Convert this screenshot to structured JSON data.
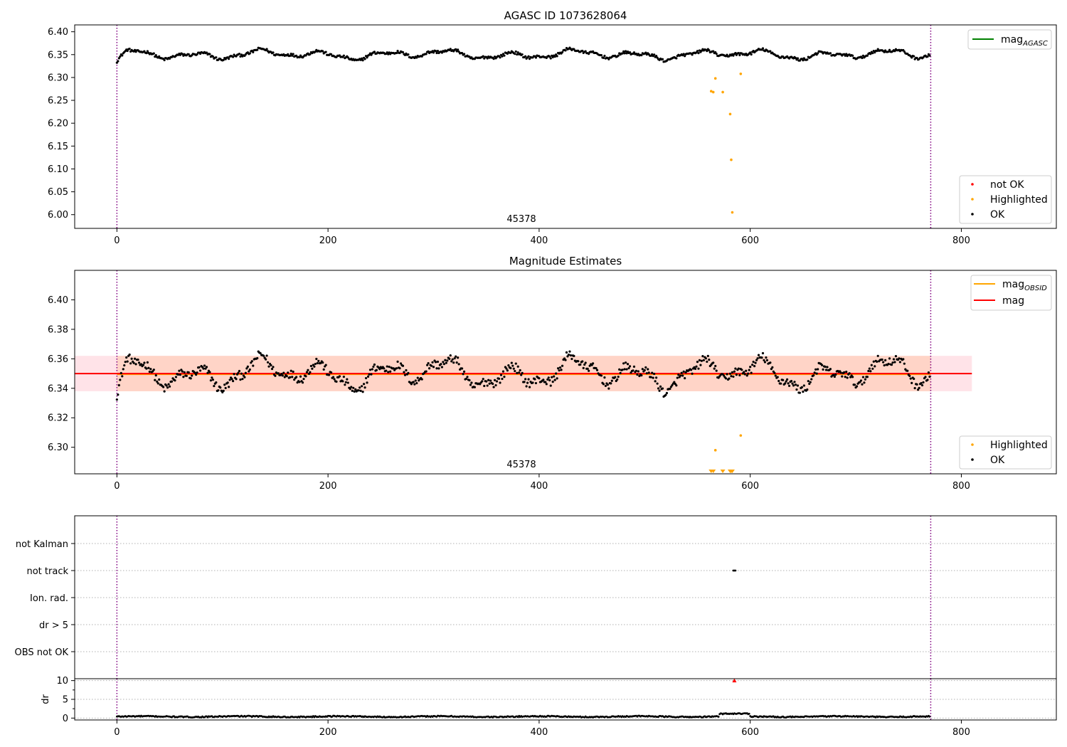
{
  "figure": {
    "title": "AGASC ID 1073628064",
    "colors": {
      "ok": "#000000",
      "highlighted": "#ffa500",
      "not_ok": "#ff0000",
      "mag_agasc": "#008000",
      "mag_obsid": "#ffa500",
      "mag": "#ff0000",
      "obsid_band": "#ffc0a0",
      "mag_band": "#ffc0cb",
      "obsid_boundary": "#800080",
      "grid": "#b0b0b0"
    }
  },
  "chart_data": [
    {
      "type": "scatter",
      "title": "AGASC ID 1073628064",
      "xlim": [
        -40,
        890
      ],
      "ylim": [
        5.97,
        6.415
      ],
      "xticks": [
        0,
        200,
        400,
        600,
        800
      ],
      "yticks": [
        "6.00",
        "6.05",
        "6.10",
        "6.15",
        "6.20",
        "6.25",
        "6.30",
        "6.35",
        "6.40"
      ],
      "obsid_label": "45378",
      "obsid_boundaries": [
        0,
        771
      ],
      "legend_lines": [
        {
          "label": "mag",
          "subscript": "AGASC"
        }
      ],
      "legend_points": [
        "not OK",
        "Highlighted",
        "OK"
      ],
      "series": [
        {
          "name": "OK",
          "generator": "baseline",
          "n": 771,
          "mean": 6.35,
          "amplitude": 0.012,
          "noise": 0.003
        },
        {
          "name": "Highlighted",
          "x": [
            563,
            565,
            567,
            574,
            581,
            582,
            583,
            591
          ],
          "y": [
            6.27,
            6.268,
            6.298,
            6.268,
            6.22,
            6.12,
            6.005,
            6.308
          ]
        }
      ]
    },
    {
      "type": "scatter",
      "title": "Magnitude Estimates",
      "xlim": [
        -40,
        890
      ],
      "ylim": [
        6.282,
        6.42
      ],
      "xticks": [
        0,
        200,
        400,
        600,
        800
      ],
      "yticks": [
        "6.30",
        "6.32",
        "6.34",
        "6.36",
        "6.38",
        "6.40"
      ],
      "obsid_label": "45378",
      "obsid_boundaries": [
        0,
        771
      ],
      "mag": 6.35,
      "mag_obsid": 6.35,
      "mag_band": [
        6.338,
        6.362
      ],
      "obsid_band": [
        6.338,
        6.362
      ],
      "band_xrange": [
        -40,
        810
      ],
      "legend_lines": [
        {
          "label": "mag",
          "subscript": "OBSID"
        },
        {
          "label": "mag",
          "subscript": ""
        }
      ],
      "legend_points": [
        "Highlighted",
        "OK"
      ],
      "series": [
        {
          "name": "OK",
          "generator": "baseline",
          "n": 771,
          "mean": 6.35,
          "amplitude": 0.012,
          "noise": 0.003
        },
        {
          "name": "Highlighted",
          "x": [
            567,
            591
          ],
          "y": [
            6.298,
            6.308
          ]
        },
        {
          "name": "Highlighted below range",
          "x": [
            563,
            565,
            574,
            581,
            582,
            583
          ]
        }
      ]
    },
    {
      "type": "scatter",
      "title": "",
      "xlim": [
        -40,
        890
      ],
      "categories": [
        "not Kalman",
        "not track",
        "Ion. rad.",
        "dr > 5",
        "OBS not OK"
      ],
      "obsid_boundaries": [
        0,
        771
      ],
      "series": [
        {
          "name": "not track",
          "x": [
            584,
            585,
            586
          ],
          "category": "not track"
        }
      ]
    },
    {
      "type": "scatter",
      "title": "",
      "ylabel": "dr",
      "xlim": [
        -40,
        890
      ],
      "ylim": [
        -0.5,
        10.5
      ],
      "xticks": [
        0,
        200,
        400,
        600,
        800
      ],
      "yticks": [
        0,
        5,
        10
      ],
      "obsid_boundaries": [
        0,
        771
      ],
      "series": [
        {
          "name": "OK",
          "generator": "dr",
          "n": 771,
          "mean": 0.4,
          "noise": 0.15
        },
        {
          "name": "not OK",
          "x": [
            585
          ],
          "y": [
            10
          ]
        }
      ]
    }
  ]
}
